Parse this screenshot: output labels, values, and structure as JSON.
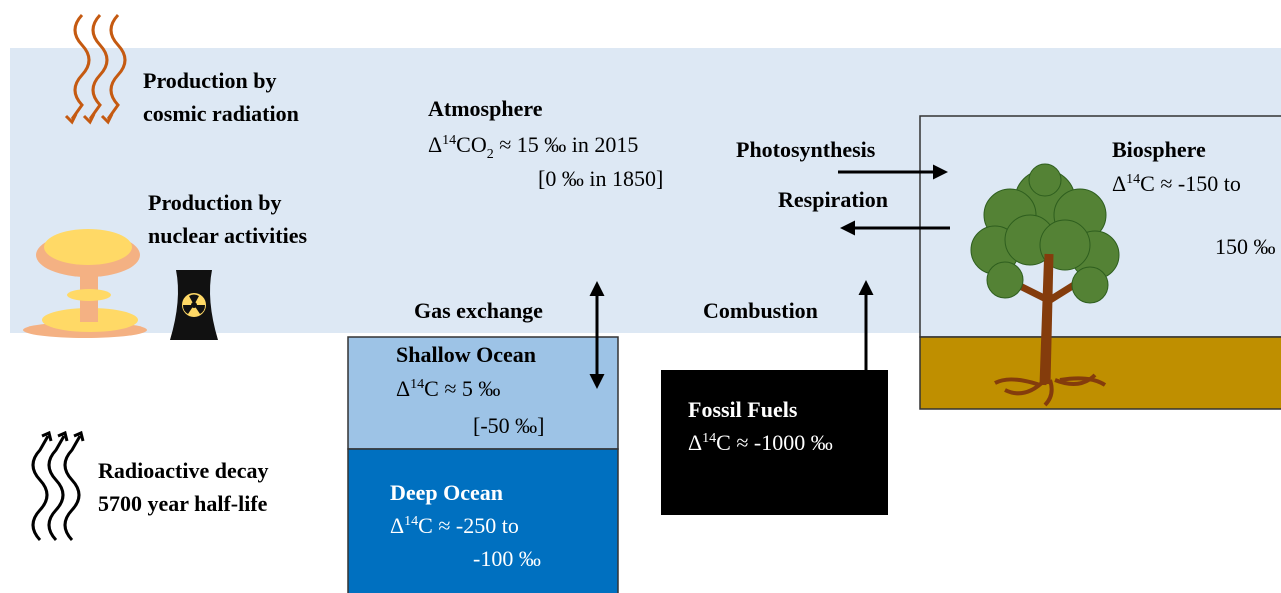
{
  "cosmic": {
    "line1": "Production by",
    "line2": "cosmic radiation"
  },
  "nuclear": {
    "line1": "Production by",
    "line2": "nuclear activities"
  },
  "decay": {
    "line1": "Radioactive decay",
    "line2": "5700 year half-life"
  },
  "atmosphere": {
    "title": "Atmosphere",
    "delta": {
      "prefix": "Δ",
      "sup": "14",
      "main": "CO",
      "sub": "2",
      "rest": " ≈ 15 ‰ in 2015"
    },
    "note": "[0 ‰ in 1850]"
  },
  "biosphere": {
    "title": "Biosphere",
    "delta": {
      "prefix": "Δ",
      "sup": "14",
      "rest": "C ≈ -150 to"
    },
    "line2": "150 ‰"
  },
  "shallow_ocean": {
    "title": "Shallow Ocean",
    "delta": {
      "prefix": "Δ",
      "sup": "14",
      "rest": "C ≈ 5 ‰"
    },
    "note": "[-50 ‰]"
  },
  "deep_ocean": {
    "title": "Deep Ocean",
    "delta": {
      "prefix": "Δ",
      "sup": "14",
      "rest": "C ≈ -250 to"
    },
    "line2": "-100 ‰"
  },
  "fossil_fuels": {
    "title": "Fossil Fuels",
    "delta": {
      "prefix": "Δ",
      "sup": "14",
      "rest": "C ≈ -1000 ‰"
    }
  },
  "fluxes": {
    "photosynthesis": "Photosynthesis",
    "respiration": "Respiration",
    "gas_exchange": "Gas exchange",
    "combustion": "Combustion"
  }
}
